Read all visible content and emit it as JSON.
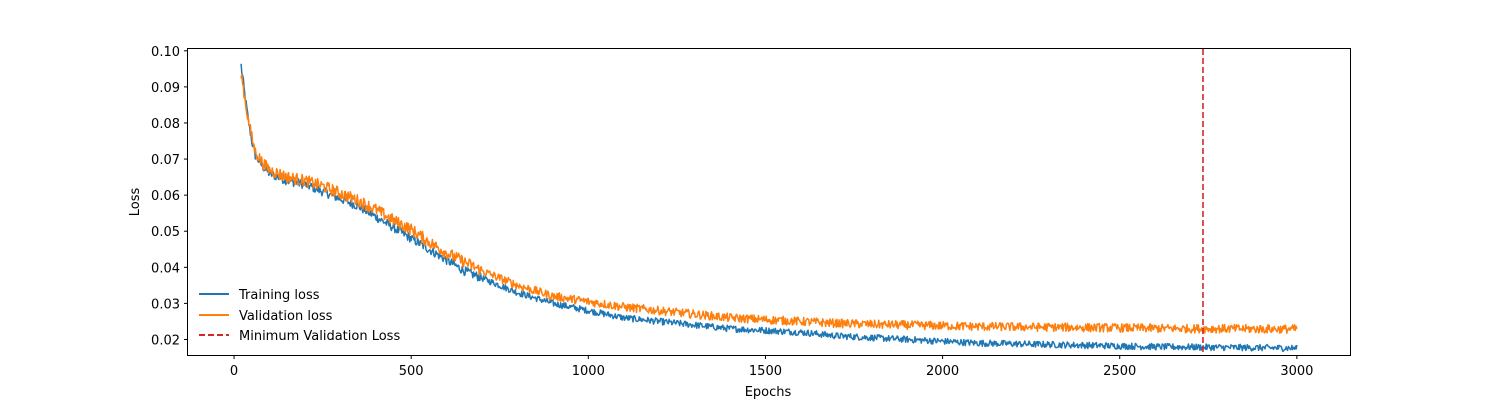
{
  "chart_data": {
    "type": "line",
    "xlabel": "Epochs",
    "ylabel": "Loss",
    "xlim": [
      -130,
      3150
    ],
    "ylim": [
      0.0157,
      0.1005
    ],
    "xticks": [
      0,
      500,
      1000,
      1500,
      2000,
      2500,
      3000
    ],
    "yticks": [
      0.02,
      0.03,
      0.04,
      0.05,
      0.06,
      0.07,
      0.08,
      0.09,
      0.1
    ],
    "ytick_labels": [
      "0.02",
      "0.03",
      "0.04",
      "0.05",
      "0.06",
      "0.07",
      "0.08",
      "0.09",
      "0.10"
    ],
    "xtick_labels": [
      "0",
      "500",
      "1000",
      "1500",
      "2000",
      "2500",
      "3000"
    ],
    "grid": false,
    "legend": {
      "placement": "lower-left",
      "frame": false
    },
    "series": [
      {
        "name": "Training loss",
        "color": "#1f77b4",
        "x": [
          20,
          30,
          40,
          50,
          60,
          80,
          100,
          150,
          200,
          250,
          300,
          350,
          400,
          450,
          500,
          550,
          600,
          650,
          700,
          750,
          800,
          900,
          1000,
          1100,
          1200,
          1300,
          1400,
          1500,
          1600,
          1700,
          1800,
          1900,
          2000,
          2100,
          2200,
          2300,
          2400,
          2500,
          2600,
          2700,
          2800,
          2900,
          3000
        ],
        "y": [
          0.096,
          0.088,
          0.081,
          0.075,
          0.071,
          0.068,
          0.066,
          0.064,
          0.063,
          0.061,
          0.059,
          0.057,
          0.054,
          0.051,
          0.048,
          0.045,
          0.042,
          0.039,
          0.037,
          0.035,
          0.033,
          0.03,
          0.028,
          0.026,
          0.025,
          0.024,
          0.023,
          0.0225,
          0.022,
          0.021,
          0.0205,
          0.02,
          0.0195,
          0.019,
          0.0188,
          0.0186,
          0.0184,
          0.0182,
          0.018,
          0.0179,
          0.0178,
          0.0177,
          0.0176
        ],
        "noise": 0.0009
      },
      {
        "name": "Validation loss",
        "color": "#ff7f0e",
        "x": [
          20,
          30,
          40,
          50,
          60,
          80,
          100,
          150,
          200,
          250,
          300,
          350,
          400,
          450,
          500,
          550,
          600,
          650,
          700,
          750,
          800,
          900,
          1000,
          1100,
          1200,
          1300,
          1400,
          1500,
          1600,
          1700,
          1800,
          1900,
          2000,
          2100,
          2200,
          2300,
          2400,
          2500,
          2600,
          2700,
          2800,
          2900,
          3000
        ],
        "y": [
          0.094,
          0.087,
          0.081,
          0.076,
          0.072,
          0.069,
          0.067,
          0.065,
          0.064,
          0.0625,
          0.0605,
          0.0585,
          0.056,
          0.053,
          0.0505,
          0.047,
          0.044,
          0.0415,
          0.039,
          0.037,
          0.035,
          0.032,
          0.0305,
          0.029,
          0.028,
          0.027,
          0.026,
          0.0255,
          0.025,
          0.0245,
          0.0242,
          0.024,
          0.0238,
          0.0236,
          0.0235,
          0.0234,
          0.0233,
          0.0232,
          0.0231,
          0.023,
          0.023,
          0.0229,
          0.0229
        ],
        "noise": 0.0012
      },
      {
        "name": "Minimum Validation Loss",
        "color": "#d62728",
        "style": "dashed",
        "vline_x": 2735
      }
    ]
  }
}
